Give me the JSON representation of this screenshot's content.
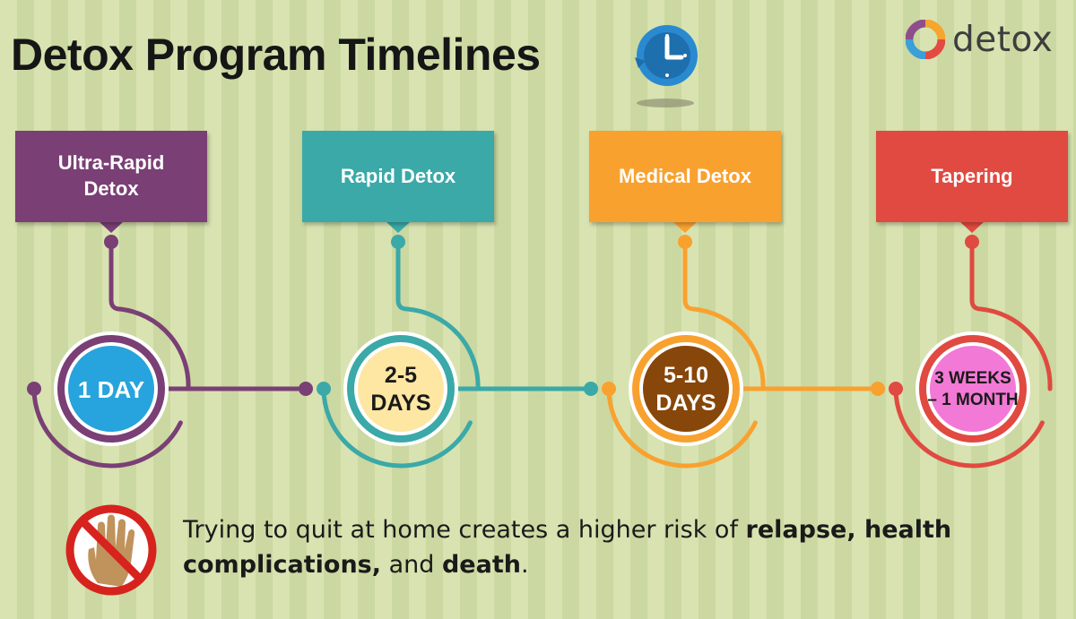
{
  "header": {
    "title_part1": "Detox Program",
    "title_part2": "Timelines",
    "logo_text": "detox",
    "clock_icon": "clock-icon"
  },
  "stages": [
    {
      "label": "Ultra-Rapid\nDetox",
      "duration": "1 DAY",
      "box_color": "#7a3f75",
      "ring_color": "#7a3f75",
      "fill_color": "#27a4dd",
      "text_color": "#ffffff"
    },
    {
      "label": "Rapid Detox",
      "duration": "2-5\nDAYS",
      "box_color": "#3aa9a8",
      "ring_color": "#3aa9a8",
      "fill_color": "#fde7a3",
      "text_color": "#1a1a1a"
    },
    {
      "label": "Medical Detox",
      "duration": "5-10\nDAYS",
      "box_color": "#f9a12f",
      "ring_color": "#f9a12f",
      "fill_color": "#87470a",
      "text_color": "#ffffff"
    },
    {
      "label": "Tapering",
      "duration": "3 WEEKS\n– 1 MONTH",
      "box_color": "#e04a40",
      "ring_color": "#e04a40",
      "fill_color": "#f379d6",
      "text_color": "#1a1a1a"
    }
  ],
  "warning": {
    "icon": "stop-hand-icon",
    "text_1": "Trying to quit at home creates a higher risk of ",
    "bold_1": "relapse, health complications,",
    "text_2": " and ",
    "bold_2": "death",
    "text_3": "."
  },
  "colors": {
    "background_a": "#d8e3b1",
    "background_b": "#cbd8a1",
    "title": "#161616",
    "clock_blue": "#2a8ad0",
    "stop_red": "#d6231e",
    "hand": "#c0925c"
  }
}
